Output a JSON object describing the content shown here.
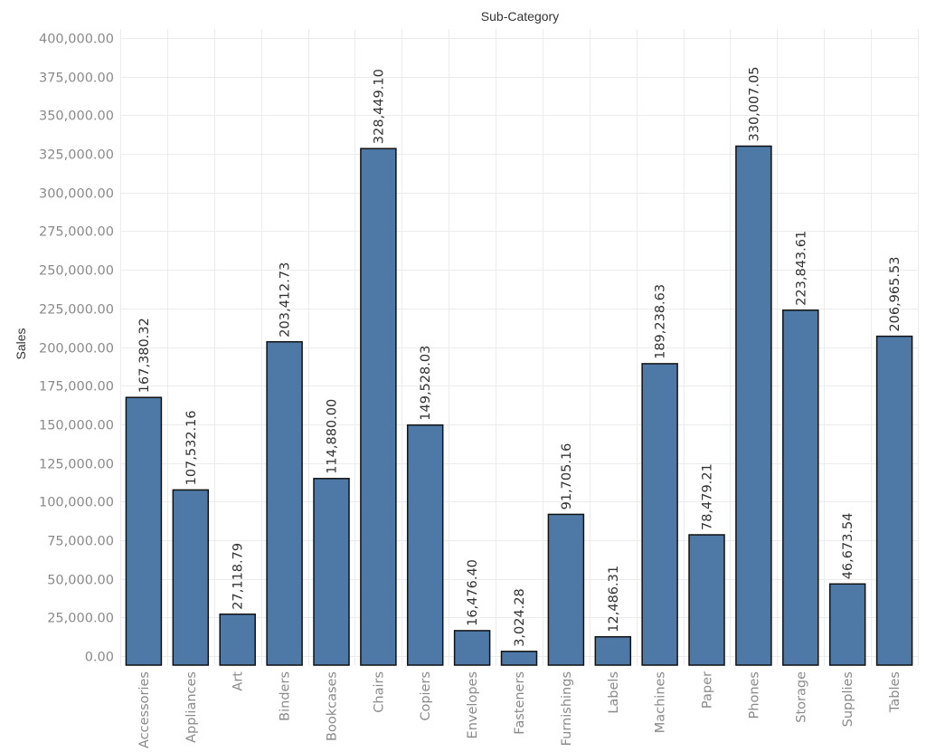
{
  "chart_data": {
    "type": "bar",
    "title": "Sub-Category",
    "xlabel": "Sub-Category",
    "ylabel": "Sales",
    "ylim": [
      0,
      400000
    ],
    "ytick_values": [
      0,
      25000,
      50000,
      75000,
      100000,
      125000,
      150000,
      175000,
      200000,
      225000,
      250000,
      275000,
      300000,
      325000,
      350000,
      375000,
      400000
    ],
    "ytick_labels": [
      "0.00",
      "25,000.00",
      "50,000.00",
      "75,000.00",
      "100,000.00",
      "125,000.00",
      "150,000.00",
      "175,000.00",
      "200,000.00",
      "225,000.00",
      "250,000.00",
      "275,000.00",
      "300,000.00",
      "325,000.00",
      "350,000.00",
      "375,000.00",
      "400,000.00"
    ],
    "categories": [
      "Accessories",
      "Appliances",
      "Art",
      "Binders",
      "Bookcases",
      "Chairs",
      "Copiers",
      "Envelopes",
      "Fasteners",
      "Furnishings",
      "Labels",
      "Machines",
      "Paper",
      "Phones",
      "Storage",
      "Supplies",
      "Tables"
    ],
    "values": [
      167380.32,
      107532.16,
      27118.79,
      203412.73,
      114880.0,
      328449.1,
      149528.03,
      16476.4,
      3024.28,
      91705.16,
      12486.31,
      189238.63,
      78479.21,
      330007.05,
      223843.61,
      46673.54,
      206965.53
    ],
    "data_labels": [
      "167,380.32",
      "107,532.16",
      "27,118.79",
      "203,412.73",
      "114,880.00",
      "328,449.10",
      "149,528.03",
      "16,476.40",
      "3,024.28",
      "91,705.16",
      "12,486.31",
      "189,238.63",
      "78,479.21",
      "330,007.05",
      "223,843.61",
      "46,673.54",
      "206,965.53"
    ],
    "grid": true,
    "legend": "none",
    "bar_color": "#4e79a7",
    "bar_edge_color": "#111111"
  }
}
